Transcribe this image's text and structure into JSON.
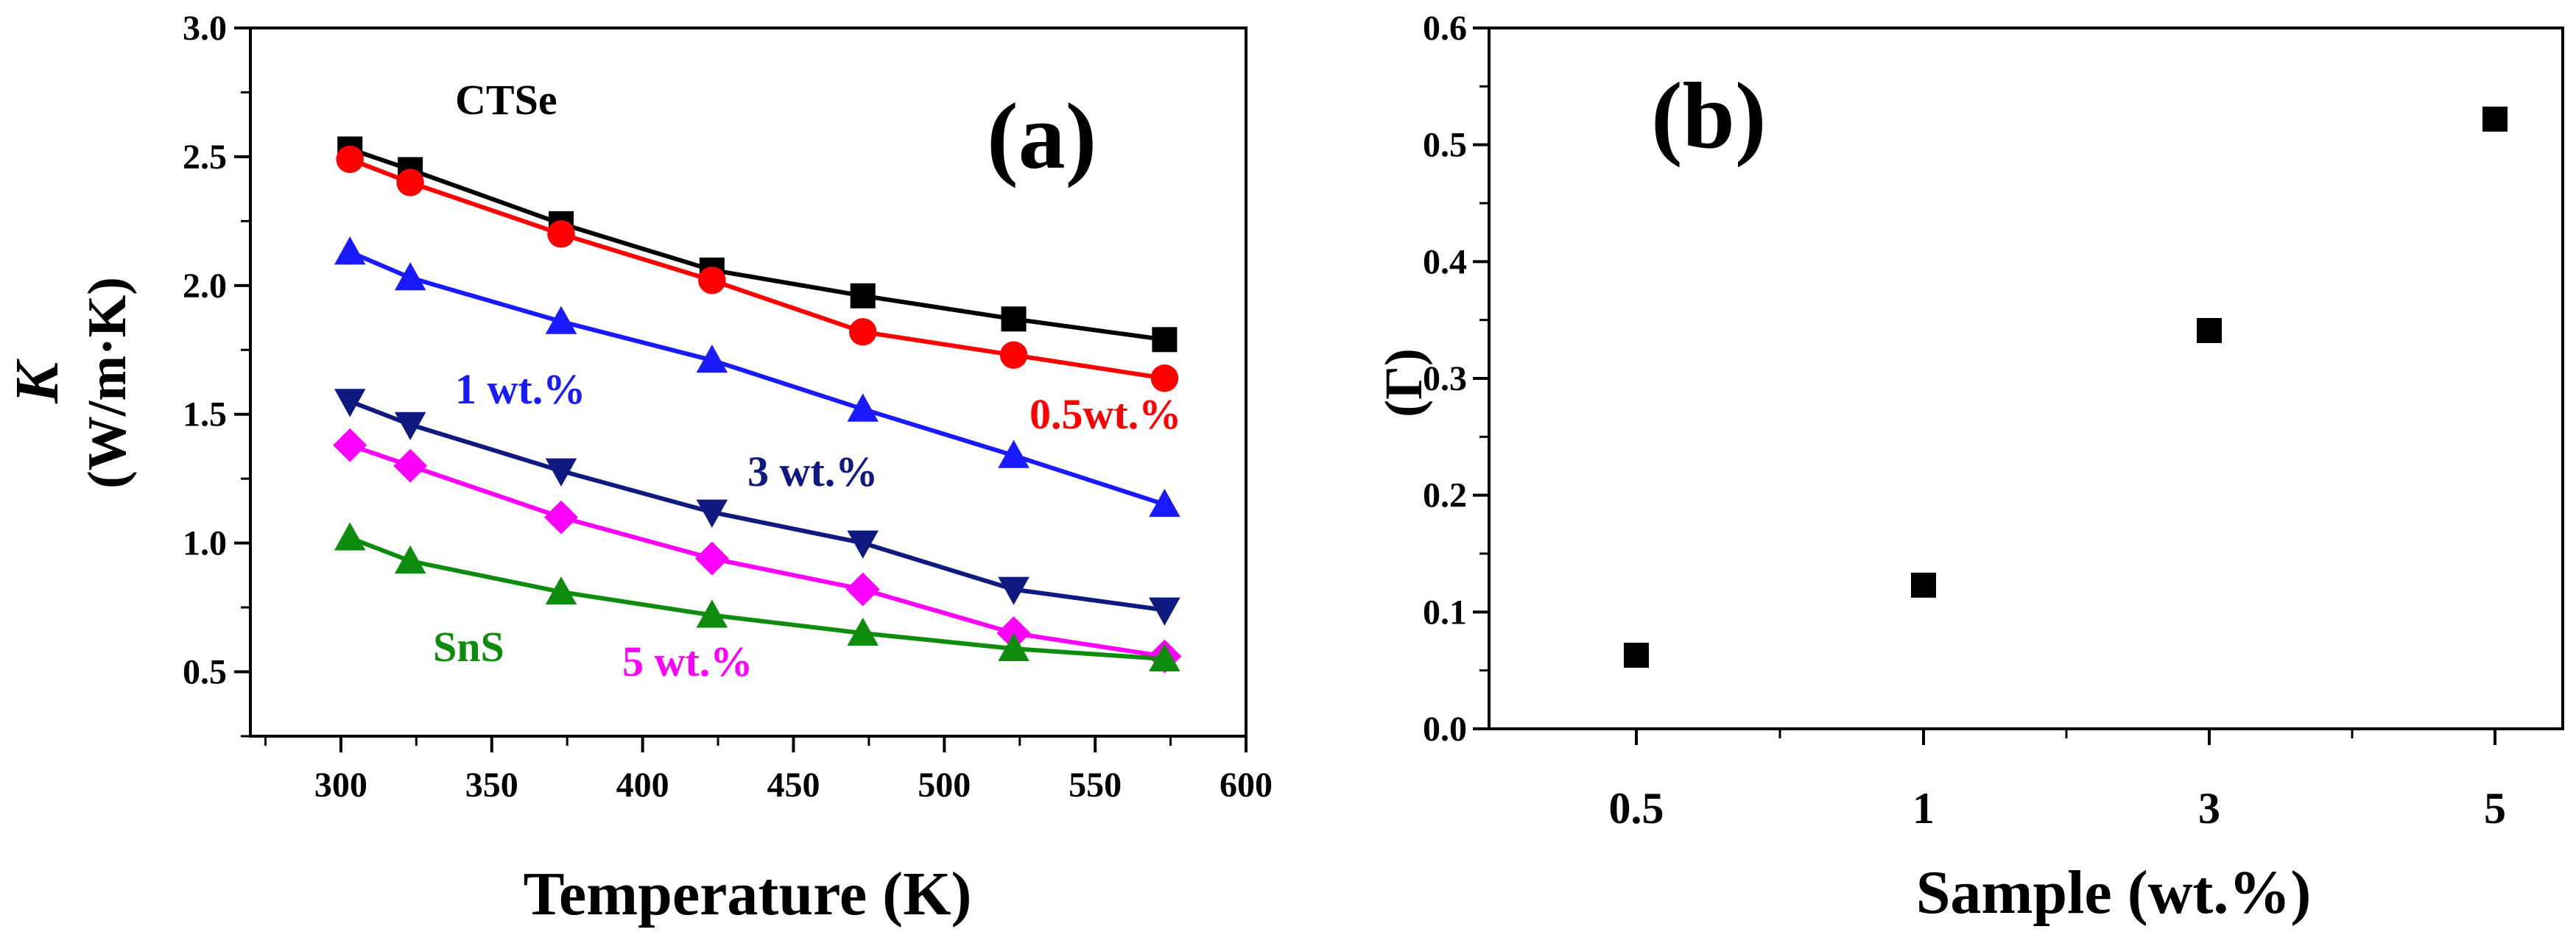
{
  "chart_data": [
    {
      "type": "line",
      "panel": "(a)",
      "xlabel": "Temperature (K)",
      "ylabel_italic": "K",
      "ylabel": "(W/m·K)",
      "xlim": [
        270,
        600
      ],
      "ylim": [
        0.25,
        3.0
      ],
      "xticks": [
        300,
        350,
        400,
        450,
        500,
        550,
        600
      ],
      "yticks": [
        0.5,
        1.0,
        1.5,
        2.0,
        2.5,
        3.0
      ],
      "xtick_labels": [
        "300",
        "350",
        "400",
        "450",
        "500",
        "550",
        "600"
      ],
      "ytick_labels": [
        "0.5",
        "1.0",
        "1.5",
        "2.0",
        "2.5",
        "3.0"
      ],
      "x": [
        303,
        323,
        373,
        423,
        473,
        523,
        573
      ],
      "series": [
        {
          "name": "CTSe",
          "color": "#000000",
          "marker": "square",
          "values": [
            2.53,
            2.45,
            2.24,
            2.06,
            1.96,
            1.87,
            1.79
          ]
        },
        {
          "name": "0.5wt.%",
          "color": "#ff0000",
          "marker": "circle",
          "values": [
            2.49,
            2.4,
            2.2,
            2.02,
            1.82,
            1.73,
            1.64
          ]
        },
        {
          "name": "1 wt.%",
          "color": "#1a1aff",
          "marker": "triangle-up",
          "values": [
            2.13,
            2.03,
            1.86,
            1.71,
            1.52,
            1.34,
            1.15
          ]
        },
        {
          "name": "3 wt.%",
          "color": "#0f1a80",
          "marker": "triangle-down",
          "values": [
            1.55,
            1.46,
            1.28,
            1.12,
            1.0,
            0.82,
            0.74
          ]
        },
        {
          "name": "5 wt.%",
          "color": "#ff00ff",
          "marker": "diamond",
          "values": [
            1.38,
            1.3,
            1.1,
            0.94,
            0.82,
            0.65,
            0.56
          ]
        },
        {
          "name": "SnS",
          "color": "#0e8c0e",
          "marker": "triangle-up",
          "values": [
            1.02,
            0.93,
            0.81,
            0.72,
            0.65,
            0.59,
            0.55
          ]
        }
      ]
    },
    {
      "type": "scatter",
      "panel": "(b)",
      "xlabel": "Sample (wt.%)",
      "ylabel": "(Γ)",
      "categories": [
        "0.5",
        "1",
        "3",
        "5"
      ],
      "ylim": [
        0.0,
        0.6
      ],
      "yticks": [
        0.0,
        0.1,
        0.2,
        0.3,
        0.4,
        0.5,
        0.6
      ],
      "ytick_labels": [
        "0.0",
        "0.1",
        "0.2",
        "0.3",
        "0.4",
        "0.5",
        "0.6"
      ],
      "series": [
        {
          "name": "Γ",
          "color": "#000000",
          "marker": "square",
          "values": [
            0.063,
            0.123,
            0.341,
            0.522
          ]
        }
      ]
    }
  ]
}
